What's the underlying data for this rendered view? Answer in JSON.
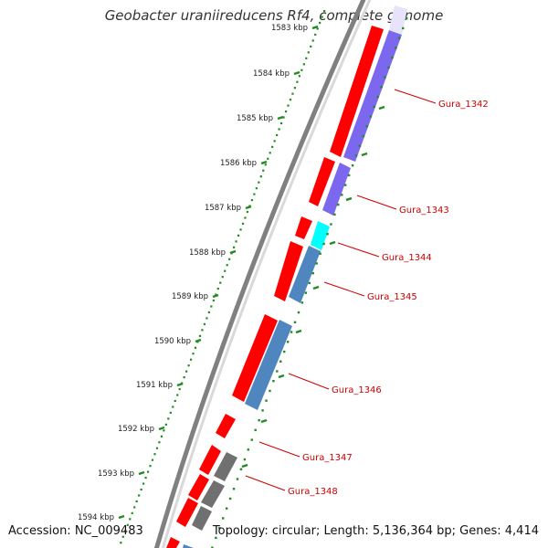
{
  "title": "Geobacter uraniireducens Rf4, complete genome",
  "footer": {
    "accession": "Accession: NC_009483",
    "summary": "Topology: circular; Length: 5,136,364 bp; Genes: 4,414"
  },
  "colors": {
    "cds": "#ff0000",
    "backbone": "#808080",
    "ticks": "#228b22",
    "label": "#cc0000",
    "purple": "#7b68ee",
    "cyan": "#00ffff",
    "steelblue": "#4f86c0",
    "gray": "#707070"
  },
  "ruler": [
    {
      "label": "1583 kbp"
    },
    {
      "label": "1584 kbp"
    },
    {
      "label": "1585 kbp"
    },
    {
      "label": "1586 kbp"
    },
    {
      "label": "1587 kbp"
    },
    {
      "label": "1588 kbp"
    },
    {
      "label": "1589 kbp"
    },
    {
      "label": "1590 kbp"
    },
    {
      "label": "1591 kbp"
    },
    {
      "label": "1592 kbp"
    },
    {
      "label": "1593 kbp"
    },
    {
      "label": "1594 kbp"
    }
  ],
  "genes": [
    {
      "name": "Gura_1342"
    },
    {
      "name": "Gura_1343"
    },
    {
      "name": "Gura_1344"
    },
    {
      "name": "Gura_1345"
    },
    {
      "name": "Gura_1346"
    },
    {
      "name": "Gura_1347"
    },
    {
      "name": "Gura_1348"
    }
  ]
}
